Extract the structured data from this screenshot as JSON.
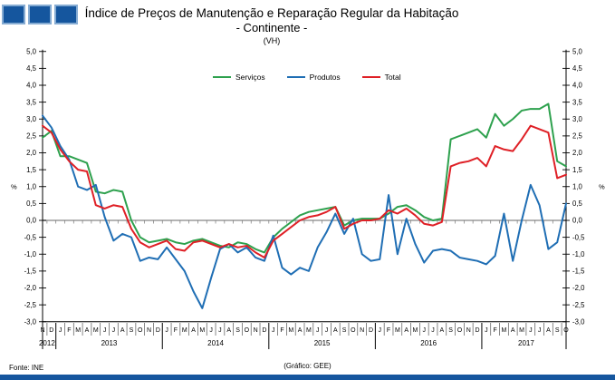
{
  "header": {
    "title_line1": "Índice de Preços de Manutenção e Reparação Regular da Habitação",
    "title_line2": "- Continente -",
    "unit_note": "(VH)"
  },
  "footer": {
    "source": "Fonte: INE",
    "credit": "(Gráfico: GEE)"
  },
  "colors": {
    "brand_blue": "#15569E",
    "brand_blue_light": "#86ACD3",
    "zero_line": "#9C9C9C",
    "axis": "#000000"
  },
  "chart_data": {
    "type": "line",
    "title": "Índice de Preços de Manutenção e Reparação Regular da Habitação - Continente -",
    "subtitle": "(VH)",
    "ylabel_left": "%",
    "ylabel_right": "%",
    "ylim": [
      -3.0,
      5.0
    ],
    "ytick_step": 0.5,
    "ytick_labels": [
      "5,0",
      "4,5",
      "4,0",
      "3,5",
      "3,0",
      "2,5",
      "2,0",
      "1,5",
      "1,0",
      "0,5",
      "0,0",
      "-0,5",
      "-1,0",
      "-1,5",
      "-2,0",
      "-2,5",
      "-3,0"
    ],
    "grid": "zero-line-only",
    "legend_position": "top-center",
    "x_months": [
      "N",
      "D",
      "J",
      "F",
      "M",
      "A",
      "M",
      "J",
      "J",
      "A",
      "S",
      "O",
      "N",
      "D",
      "J",
      "F",
      "M",
      "A",
      "M",
      "J",
      "J",
      "A",
      "S",
      "O",
      "N",
      "D",
      "J",
      "F",
      "M",
      "A",
      "M",
      "J",
      "J",
      "A",
      "S",
      "O",
      "N",
      "D",
      "J",
      "F",
      "M",
      "A",
      "M",
      "J",
      "J",
      "A",
      "S",
      "O",
      "N",
      "D",
      "J",
      "F",
      "M",
      "A",
      "M",
      "J",
      "J",
      "A",
      "S",
      "O"
    ],
    "years": [
      {
        "label": "2012",
        "start": 0,
        "count": 2
      },
      {
        "label": "2013",
        "start": 2,
        "count": 12
      },
      {
        "label": "2014",
        "start": 14,
        "count": 12
      },
      {
        "label": "2015",
        "start": 26,
        "count": 12
      },
      {
        "label": "2016",
        "start": 38,
        "count": 12
      },
      {
        "label": "2017",
        "start": 50,
        "count": 10
      }
    ],
    "series": [
      {
        "name": "Serviços",
        "color": "#2EA14E",
        "values": [
          2.45,
          2.65,
          1.9,
          1.9,
          1.8,
          1.7,
          0.85,
          0.8,
          0.9,
          0.85,
          0.0,
          -0.5,
          -0.65,
          -0.6,
          -0.55,
          -0.65,
          -0.7,
          -0.6,
          -0.55,
          -0.65,
          -0.75,
          -0.8,
          -0.65,
          -0.7,
          -0.85,
          -0.95,
          -0.5,
          -0.25,
          -0.05,
          0.15,
          0.25,
          0.3,
          0.35,
          0.4,
          -0.15,
          0.0,
          0.05,
          0.05,
          0.05,
          0.2,
          0.4,
          0.45,
          0.3,
          0.1,
          0.0,
          0.05,
          2.4,
          2.5,
          2.6,
          2.7,
          2.45,
          3.15,
          2.8,
          3.0,
          3.25,
          3.3,
          3.3,
          3.45,
          1.75,
          1.6
        ]
      },
      {
        "name": "Produtos",
        "color": "#1F6EB4",
        "values": [
          3.1,
          2.75,
          2.2,
          1.8,
          1.0,
          0.9,
          1.05,
          0.1,
          -0.6,
          -0.4,
          -0.5,
          -1.2,
          -1.1,
          -1.15,
          -0.8,
          -1.15,
          -1.5,
          -2.1,
          -2.6,
          -1.7,
          -0.85,
          -0.7,
          -0.95,
          -0.8,
          -1.1,
          -1.2,
          -0.45,
          -1.4,
          -1.6,
          -1.4,
          -1.5,
          -0.8,
          -0.35,
          0.2,
          -0.4,
          0.05,
          -1.0,
          -1.2,
          -1.15,
          0.75,
          -1.0,
          0.05,
          -0.7,
          -1.25,
          -0.9,
          -0.85,
          -0.9,
          -1.1,
          -1.15,
          -1.2,
          -1.3,
          -1.05,
          0.2,
          -1.2,
          0.0,
          1.05,
          0.45,
          -0.85,
          -0.65,
          0.5
        ]
      },
      {
        "name": "Total",
        "color": "#DF2026",
        "values": [
          2.8,
          2.6,
          2.1,
          1.75,
          1.5,
          1.45,
          0.45,
          0.35,
          0.45,
          0.4,
          -0.25,
          -0.65,
          -0.8,
          -0.7,
          -0.6,
          -0.85,
          -0.9,
          -0.65,
          -0.6,
          -0.7,
          -0.8,
          -0.7,
          -0.8,
          -0.75,
          -0.95,
          -1.1,
          -0.6,
          -0.4,
          -0.2,
          0.0,
          0.1,
          0.15,
          0.25,
          0.4,
          -0.25,
          -0.1,
          0.0,
          0.0,
          0.05,
          0.3,
          0.2,
          0.35,
          0.15,
          -0.1,
          -0.15,
          -0.05,
          1.6,
          1.7,
          1.75,
          1.85,
          1.6,
          2.2,
          2.1,
          2.05,
          2.4,
          2.8,
          2.7,
          2.6,
          1.25,
          1.35
        ]
      }
    ]
  }
}
